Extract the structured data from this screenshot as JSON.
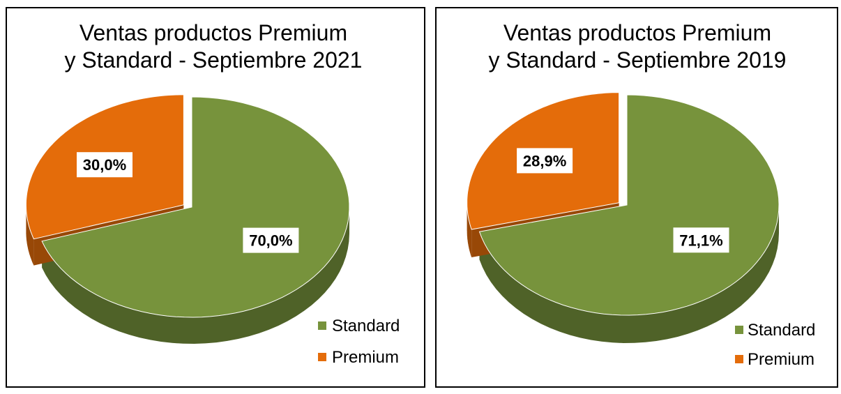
{
  "colors": {
    "standard": "#77933C",
    "standard_dark": "#4F6228",
    "premium": "#E46C0A",
    "premium_dark": "#984807"
  },
  "chart_data": [
    {
      "type": "pie",
      "title": [
        "Ventas productos Premium",
        "y Standard - Septiembre 2021"
      ],
      "series": [
        {
          "name": "Standard",
          "value": 70.0,
          "label": "70,0%"
        },
        {
          "name": "Premium",
          "value": 30.0,
          "label": "30,0%"
        }
      ],
      "legend": {
        "position": "bottom-right",
        "entries": [
          "Standard",
          "Premium"
        ]
      }
    },
    {
      "type": "pie",
      "title": [
        "Ventas productos Premium",
        "y Standard - Septiembre 2019"
      ],
      "series": [
        {
          "name": "Standard",
          "value": 71.1,
          "label": "71,1%"
        },
        {
          "name": "Premium",
          "value": 28.9,
          "label": "28,9%"
        }
      ],
      "legend": {
        "position": "bottom-right",
        "entries": [
          "Standard",
          "Premium"
        ]
      }
    }
  ]
}
